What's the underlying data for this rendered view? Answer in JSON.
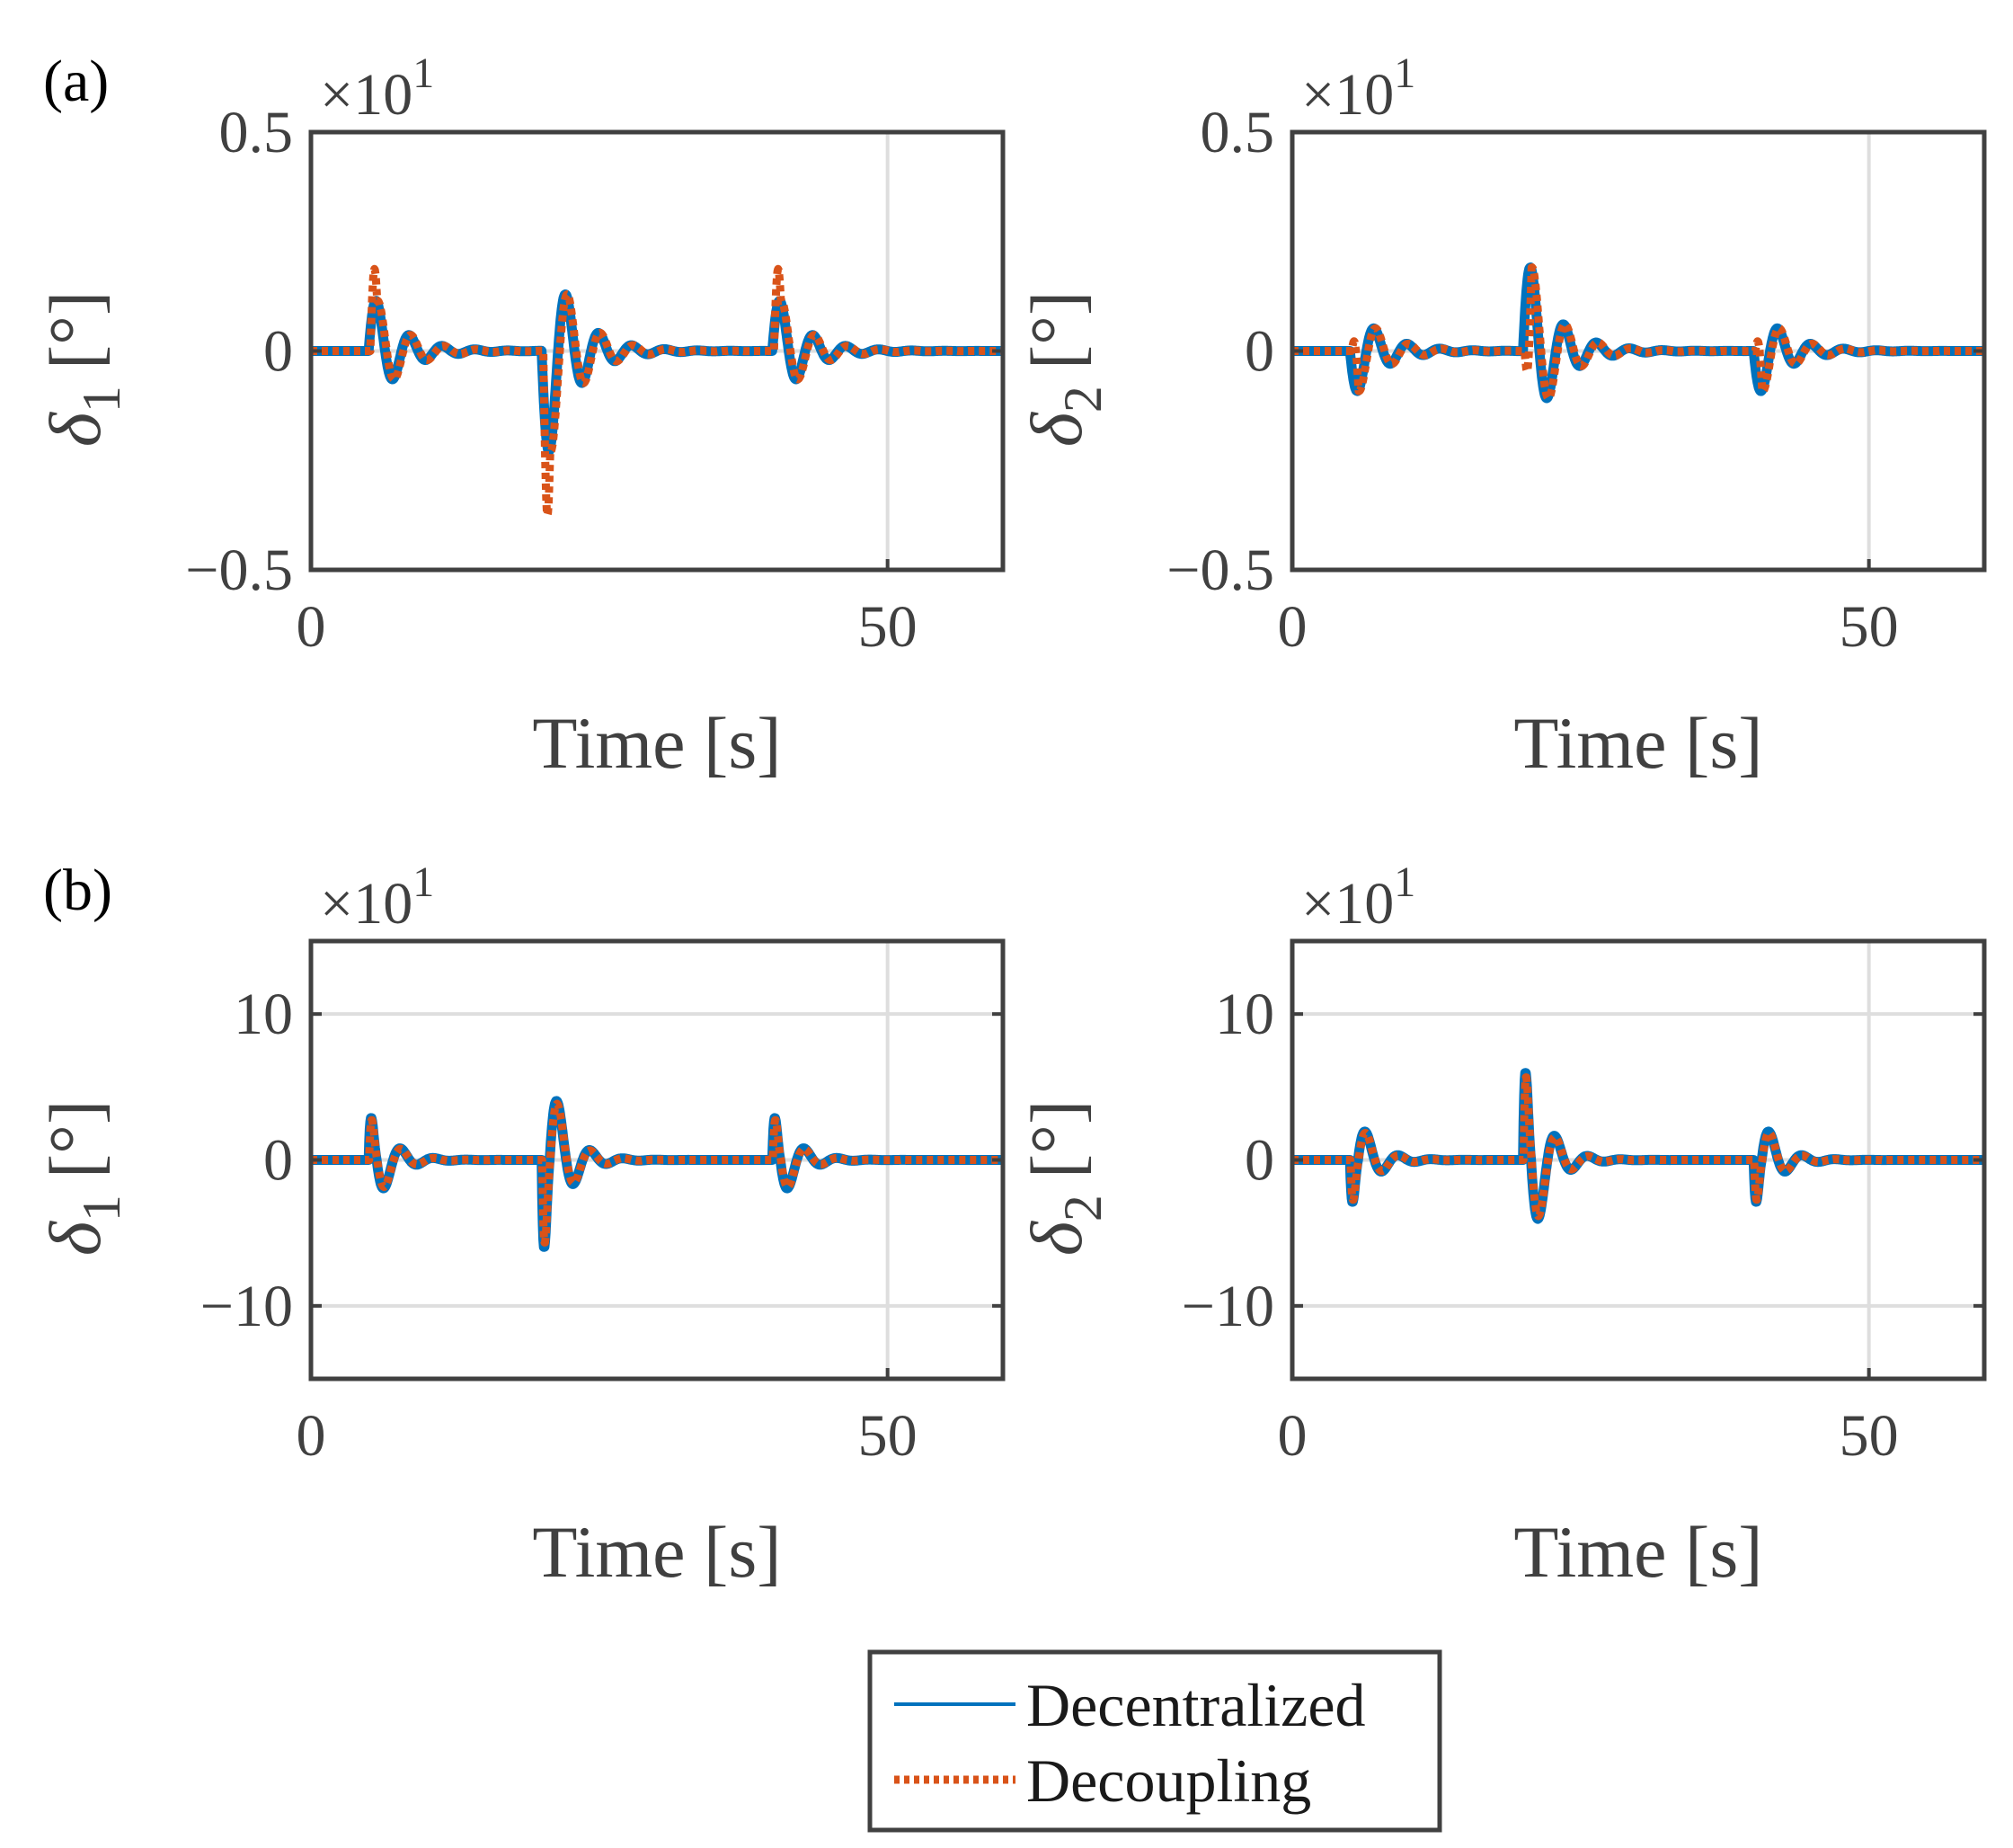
{
  "panel_labels": [
    "(a)",
    "(b)"
  ],
  "legend": {
    "entries": [
      {
        "label": "Decentralized",
        "color": "#0072BD",
        "style": "solid"
      },
      {
        "label": "Decoupling",
        "color": "#D95319",
        "style": "dotted"
      }
    ]
  },
  "chart_data": [
    {
      "type": "line",
      "panel": "(a)",
      "title": "",
      "xlabel": "Time [s]",
      "ylabel_symbol": "δ",
      "ylabel_sub": "1",
      "ylabel_unit": "[°]",
      "y_exponent": "×10",
      "y_exponent_power": "1",
      "xlim": [
        0,
        60
      ],
      "ylim": [
        -0.5,
        0.5
      ],
      "xticks": [
        0,
        50
      ],
      "xtick_labels": [
        "0",
        "50"
      ],
      "yticks": [
        -0.5,
        0,
        0.5
      ],
      "ytick_labels": [
        "−0.5",
        "0",
        "0.5"
      ],
      "grid": true,
      "events": [
        {
          "t": 5,
          "amp": 1.5,
          "freq": 0.35,
          "tau": 2.5
        },
        {
          "t": 20,
          "amp": -3.0,
          "freq": 0.35,
          "tau": 2.5
        },
        {
          "t": 40,
          "amp": 1.5,
          "freq": 0.35,
          "tau": 2.5
        }
      ],
      "series": [
        {
          "name": "Decentralized",
          "scale_factor": 0.1,
          "spike": 0.0,
          "lag": 0.0
        },
        {
          "name": "Decoupling",
          "scale_factor": 0.1,
          "spike": -0.2,
          "lag": 0.15
        }
      ]
    },
    {
      "type": "line",
      "panel": "(a)",
      "title": "",
      "xlabel": "Time [s]",
      "ylabel_symbol": "δ",
      "ylabel_sub": "2",
      "ylabel_unit": "[°]",
      "y_exponent": "×10",
      "y_exponent_power": "1",
      "xlim": [
        0,
        60
      ],
      "ylim": [
        -0.5,
        0.5
      ],
      "xticks": [
        0,
        50
      ],
      "xtick_labels": [
        "0",
        "50"
      ],
      "yticks": [
        -0.5,
        0,
        0.5
      ],
      "ytick_labels": [
        "−0.5",
        "0",
        "0.5"
      ],
      "grid": true,
      "events": [
        {
          "t": 5,
          "amp": -1.2,
          "freq": 0.35,
          "tau": 2.5
        },
        {
          "t": 20,
          "amp": 2.5,
          "freq": 0.35,
          "tau": 2.5
        },
        {
          "t": 40,
          "amp": -1.2,
          "freq": 0.35,
          "tau": 2.5
        }
      ],
      "series": [
        {
          "name": "Decentralized",
          "scale_factor": 0.1,
          "spike": 0.0,
          "lag": 0.0
        },
        {
          "name": "Decoupling",
          "scale_factor": 0.1,
          "spike": 0.2,
          "lag": 0.15
        }
      ]
    },
    {
      "type": "line",
      "panel": "(b)",
      "title": "",
      "xlabel": "Time [s]",
      "ylabel_symbol": "δ",
      "ylabel_sub": "1",
      "ylabel_unit": "[°]",
      "y_exponent": "×10",
      "y_exponent_power": "1",
      "xlim": [
        0,
        60
      ],
      "ylim": [
        -15,
        15
      ],
      "xticks": [
        0,
        50
      ],
      "xtick_labels": [
        "0",
        "50"
      ],
      "yticks": [
        -10,
        0,
        10
      ],
      "ytick_labels": [
        "−10",
        "0",
        "10"
      ],
      "grid": true,
      "events": [
        {
          "t": 5,
          "amp": 6.5,
          "freq": 0.35,
          "tau": 1.6,
          "sharp": true
        },
        {
          "t": 20,
          "amp": -13.5,
          "freq": 0.35,
          "tau": 1.6,
          "sharp": true
        },
        {
          "t": 40,
          "amp": 6.5,
          "freq": 0.35,
          "tau": 1.6,
          "sharp": true
        }
      ],
      "series": [
        {
          "name": "Decentralized",
          "scale_factor": 1.0,
          "spike": 0.0,
          "lag": 0.0
        },
        {
          "name": "Decoupling",
          "scale_factor": 0.95,
          "spike": 0.0,
          "lag": 0.05
        }
      ]
    },
    {
      "type": "line",
      "panel": "(b)",
      "title": "",
      "xlabel": "Time [s]",
      "ylabel_symbol": "δ",
      "ylabel_sub": "2",
      "ylabel_unit": "[°]",
      "y_exponent": "×10",
      "y_exponent_power": "1",
      "xlim": [
        0,
        60
      ],
      "ylim": [
        -15,
        15
      ],
      "xticks": [
        0,
        50
      ],
      "xtick_labels": [
        "0",
        "50"
      ],
      "yticks": [
        -10,
        0,
        10
      ],
      "ytick_labels": [
        "−10",
        "0",
        "10"
      ],
      "grid": true,
      "events": [
        {
          "t": 5,
          "amp": -6.5,
          "freq": 0.35,
          "tau": 1.6,
          "sharp": true
        },
        {
          "t": 20,
          "amp": 13.5,
          "freq": 0.35,
          "tau": 1.6,
          "sharp": true
        },
        {
          "t": 40,
          "amp": -6.5,
          "freq": 0.35,
          "tau": 1.6,
          "sharp": true
        }
      ],
      "series": [
        {
          "name": "Decentralized",
          "scale_factor": 1.0,
          "spike": 0.0,
          "lag": 0.0
        },
        {
          "name": "Decoupling",
          "scale_factor": 0.95,
          "spike": 0.0,
          "lag": 0.05
        }
      ]
    }
  ]
}
